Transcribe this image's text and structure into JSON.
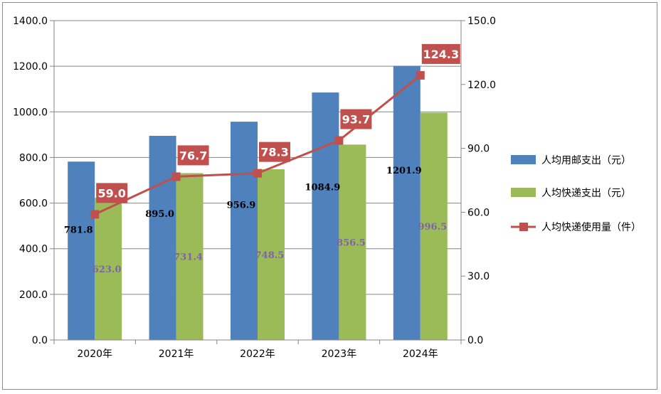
{
  "chart_data": {
    "type": "bar",
    "categories": [
      "2020年",
      "2021年",
      "2022年",
      "2023年",
      "2024年"
    ],
    "series": [
      {
        "name": "人均用邮支出（元）",
        "type": "bar",
        "axis": "left",
        "color": "#4f81bd",
        "values": [
          781.8,
          895.0,
          956.9,
          1084.9,
          1201.9
        ],
        "labels": [
          "781.8",
          "895.0",
          "956.9",
          "1084.9",
          "1201.9"
        ]
      },
      {
        "name": "人均快递支出（元）",
        "type": "bar",
        "axis": "left",
        "color": "#9bbb59",
        "values": [
          623.0,
          731.4,
          748.5,
          856.5,
          996.5
        ],
        "labels": [
          "623.0",
          "731.4",
          "748.5",
          "856.5",
          "996.5"
        ]
      },
      {
        "name": "人均快递使用量（件）",
        "type": "line",
        "axis": "right",
        "color": "#c0504d",
        "values": [
          59.0,
          76.7,
          78.3,
          93.7,
          124.3
        ],
        "labels": [
          "59.0",
          "76.7",
          "78.3",
          "93.7",
          "124.3"
        ]
      }
    ],
    "y_left": {
      "range": [
        0,
        1400
      ],
      "ticks": [
        "0.0",
        "200.0",
        "400.0",
        "600.0",
        "800.0",
        "1000.0",
        "1200.0",
        "1400.0"
      ]
    },
    "y_right": {
      "range": [
        0,
        150
      ],
      "ticks": [
        "0.0",
        "30.0",
        "60.0",
        "90.0",
        "120.0",
        "150.0"
      ]
    },
    "grid": "horizontal",
    "legend_position": "right"
  }
}
